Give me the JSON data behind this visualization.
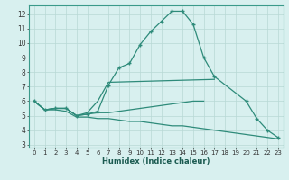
{
  "line1_x": [
    0,
    1,
    2,
    3,
    4,
    5,
    6,
    7,
    8,
    9,
    10,
    11,
    12,
    13,
    14,
    15,
    16,
    17,
    20,
    21,
    22,
    23
  ],
  "line1_y": [
    6.0,
    5.4,
    5.5,
    5.5,
    5.0,
    5.1,
    5.3,
    7.1,
    8.3,
    8.6,
    9.9,
    10.8,
    11.5,
    12.2,
    12.2,
    11.3,
    9.0,
    7.7,
    6.0,
    4.8,
    4.0,
    3.5
  ],
  "line2_x": [
    0,
    1,
    2,
    3,
    4,
    5,
    6,
    7,
    17
  ],
  "line2_y": [
    6.0,
    5.4,
    5.5,
    5.5,
    5.0,
    5.2,
    6.0,
    7.3,
    7.5
  ],
  "line3_x": [
    0,
    1,
    2,
    3,
    4,
    5,
    6,
    7,
    8,
    9,
    10,
    11,
    12,
    13,
    14,
    15,
    16
  ],
  "line3_y": [
    6.0,
    5.4,
    5.5,
    5.5,
    5.0,
    5.1,
    5.2,
    5.2,
    5.3,
    5.4,
    5.5,
    5.6,
    5.7,
    5.8,
    5.9,
    6.0,
    6.0
  ],
  "line4_x": [
    0,
    1,
    2,
    3,
    4,
    5,
    6,
    7,
    8,
    9,
    10,
    11,
    12,
    13,
    14,
    15,
    16,
    17,
    18,
    19,
    20,
    21,
    22,
    23
  ],
  "line4_y": [
    6.0,
    5.4,
    5.4,
    5.3,
    4.9,
    4.9,
    4.8,
    4.8,
    4.7,
    4.6,
    4.6,
    4.5,
    4.4,
    4.3,
    4.3,
    4.2,
    4.1,
    4.0,
    3.9,
    3.8,
    3.7,
    3.6,
    3.5,
    3.4
  ],
  "color": "#2e8b7a",
  "bg_color": "#d8f0ef",
  "grid_color": "#b8d8d5",
  "xlabel": "Humidex (Indice chaleur)",
  "xlim": [
    -0.5,
    23.5
  ],
  "ylim": [
    2.8,
    12.6
  ],
  "yticks": [
    3,
    4,
    5,
    6,
    7,
    8,
    9,
    10,
    11,
    12
  ],
  "xticks": [
    0,
    1,
    2,
    3,
    4,
    5,
    6,
    7,
    8,
    9,
    10,
    11,
    12,
    13,
    14,
    15,
    16,
    17,
    18,
    19,
    20,
    21,
    22,
    23
  ]
}
